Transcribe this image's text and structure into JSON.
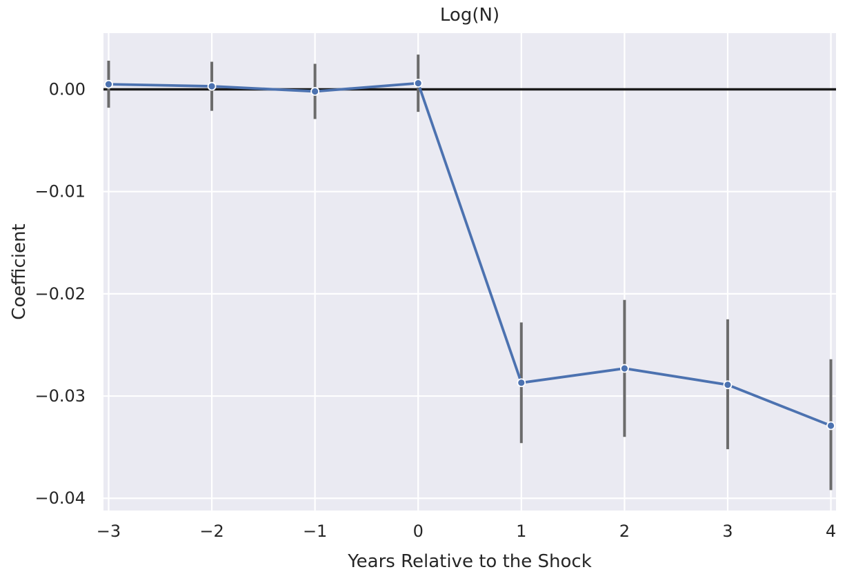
{
  "chart_data": {
    "type": "line",
    "title": "Log(N)",
    "xlabel": "Years Relative to the Shock",
    "ylabel": "Coefficient",
    "x": [
      -3,
      -2,
      -1,
      0,
      1,
      2,
      3,
      4
    ],
    "x_tick_labels": [
      "−3",
      "−2",
      "−1",
      "0",
      "1",
      "2",
      "3",
      "4"
    ],
    "y_ticks": [
      0.0,
      -0.01,
      -0.02,
      -0.03,
      -0.04
    ],
    "y_tick_labels": [
      "0.00",
      "−0.01",
      "−0.02",
      "−0.03",
      "−0.04"
    ],
    "xlim": [
      -3.05,
      4.05
    ],
    "ylim": [
      -0.0412,
      0.0055
    ],
    "reference_line_y": 0,
    "grid": true,
    "series": [
      {
        "values": [
          0.0005,
          0.0003,
          -0.0002,
          0.0006,
          -0.0287,
          -0.0273,
          -0.0289,
          -0.0329
        ],
        "ci_low": [
          -0.0018,
          -0.0021,
          -0.0029,
          -0.0022,
          -0.0346,
          -0.034,
          -0.0352,
          -0.0392
        ],
        "ci_high": [
          0.0028,
          0.0027,
          0.0025,
          0.0034,
          -0.0228,
          -0.0206,
          -0.0225,
          -0.0264
        ],
        "color": "#4c72b0",
        "error_bar_color": "#6b6b6b"
      }
    ],
    "colors": {
      "plot_background": "#eaeaf2",
      "grid": "#ffffff",
      "reference_line": "#1a1a1a",
      "text": "#262626"
    }
  }
}
